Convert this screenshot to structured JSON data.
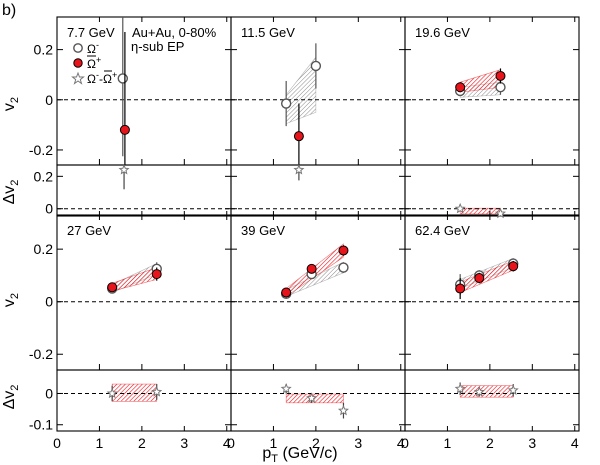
{
  "figure_label": "b)",
  "annotation": {
    "system": "Au+Au,  0-80%",
    "method": "η-sub EP"
  },
  "legend": [
    {
      "key": "omega_minus",
      "label": "Ω",
      "sup": "-",
      "marker": "open-circle"
    },
    {
      "key": "antiomega_plus",
      "label": "Ω",
      "sup": "+",
      "overline": true,
      "marker": "filled-circle"
    },
    {
      "key": "difference",
      "label": "Ω-Ω",
      "sup": "+",
      "sup_first": "-",
      "marker": "open-star"
    }
  ],
  "axes": {
    "xlabel_main": "p",
    "xlabel_sub": "T",
    "xlabel_rest": " (GeV/c)",
    "ylabel_v2_main": "v",
    "ylabel_v2_sub": "2",
    "ylabel_dv2_main": "Δv",
    "ylabel_dv2_sub": "2",
    "x_ticks": [
      "0",
      "1",
      "2",
      "3",
      "4"
    ],
    "v2_ticks_top": [
      "0.2",
      "0",
      "-0.2"
    ],
    "dv2_ticks_top": [
      "0.2",
      "0"
    ],
    "v2_ticks_bottom": [
      "0.2",
      "0",
      "-0.2"
    ],
    "dv2_ticks_bottom": [
      "0",
      "-0.1"
    ]
  },
  "colors": {
    "antiomega_fill": "#e8141b",
    "band_red": "#e8141b",
    "band_gray": "#8a8a8a"
  },
  "chart_data": {
    "type": "scatter",
    "title": "",
    "xlabel": "pT (GeV/c)",
    "xlim": [
      0,
      4.1
    ],
    "v2_ylim": [
      -0.26,
      0.33
    ],
    "dv2_ylim_top": [
      -0.045,
      0.27
    ],
    "dv2_ylim_bottom": [
      -0.12,
      0.075
    ],
    "panels": [
      {
        "energy": "7.7 GeV",
        "omega_minus": [
          {
            "x": 1.55,
            "y": 0.085,
            "err": 0.31
          }
        ],
        "antiomega_plus": [
          {
            "x": 1.6,
            "y": -0.12,
            "err": 0.39
          }
        ],
        "difference": [
          {
            "x": 1.58,
            "y": 0.24,
            "err": 0.12
          }
        ],
        "band_red": null,
        "band_gray": null,
        "dv2_band": null
      },
      {
        "energy": "11.5 GeV",
        "omega_minus": [
          {
            "x": 1.3,
            "y": -0.015,
            "err": 0.09
          },
          {
            "x": 2.0,
            "y": 0.135,
            "err": 0.09
          }
        ],
        "antiomega_plus": [
          {
            "x": 1.6,
            "y": -0.145,
            "err": 0.13
          }
        ],
        "difference": [
          {
            "x": 1.6,
            "y": 0.24,
            "err": 0.065
          }
        ],
        "band_red": null,
        "band_gray": {
          "x": [
            1.3,
            2.0
          ],
          "lo": [
            -0.095,
            -0.05
          ],
          "hi": [
            0.02,
            0.17
          ]
        },
        "dv2_band": null
      },
      {
        "energy": "19.6 GeV",
        "omega_minus": [
          {
            "x": 1.3,
            "y": 0.035,
            "err": 0.02
          },
          {
            "x": 2.25,
            "y": 0.05,
            "err": 0.03
          }
        ],
        "antiomega_plus": [
          {
            "x": 1.3,
            "y": 0.05,
            "err": 0.02
          },
          {
            "x": 2.25,
            "y": 0.095,
            "err": 0.03
          }
        ],
        "difference": [
          {
            "x": 1.3,
            "y": 0.0,
            "err": 0.008
          },
          {
            "x": 2.25,
            "y": -0.03,
            "err": 0.012
          }
        ],
        "band_red": {
          "x": [
            1.3,
            2.25
          ],
          "lo": [
            0.03,
            0.05
          ],
          "hi": [
            0.07,
            0.12
          ]
        },
        "band_gray": {
          "x": [
            1.3,
            2.25
          ],
          "lo": [
            0.01,
            0.02
          ],
          "hi": [
            0.05,
            0.07
          ]
        },
        "dv2_band": {
          "x": [
            1.3,
            2.25
          ],
          "lo": [
            -0.032,
            -0.032
          ],
          "hi": [
            0.003,
            0.003
          ]
        }
      },
      {
        "energy": "27 GeV",
        "omega_minus": [
          {
            "x": 1.3,
            "y": 0.05,
            "err": 0.015
          },
          {
            "x": 2.35,
            "y": 0.125,
            "err": 0.025
          }
        ],
        "antiomega_plus": [
          {
            "x": 1.3,
            "y": 0.055,
            "err": 0.015
          },
          {
            "x": 2.35,
            "y": 0.105,
            "err": 0.025
          }
        ],
        "difference": [
          {
            "x": 1.3,
            "y": 0.0,
            "err": 0.025
          },
          {
            "x": 2.35,
            "y": 0.005,
            "err": 0.025
          }
        ],
        "band_red": {
          "x": [
            1.3,
            2.35
          ],
          "lo": [
            0.04,
            0.085
          ],
          "hi": [
            0.07,
            0.13
          ]
        },
        "band_gray": {
          "x": [
            1.3,
            2.35
          ],
          "lo": [
            0.035,
            0.105
          ],
          "hi": [
            0.065,
            0.145
          ]
        },
        "dv2_band": {
          "x": [
            1.3,
            2.35
          ],
          "lo": [
            -0.025,
            -0.025
          ],
          "hi": [
            0.03,
            0.03
          ]
        }
      },
      {
        "energy": "39 GeV",
        "omega_minus": [
          {
            "x": 1.3,
            "y": 0.03,
            "err": 0.015
          },
          {
            "x": 1.9,
            "y": 0.105,
            "err": 0.015
          },
          {
            "x": 2.65,
            "y": 0.13,
            "err": 0.02
          }
        ],
        "antiomega_plus": [
          {
            "x": 1.3,
            "y": 0.035,
            "err": 0.015
          },
          {
            "x": 1.9,
            "y": 0.125,
            "err": 0.015
          },
          {
            "x": 2.65,
            "y": 0.195,
            "err": 0.02
          }
        ],
        "difference": [
          {
            "x": 1.3,
            "y": 0.015,
            "err": 0.015
          },
          {
            "x": 1.9,
            "y": -0.015,
            "err": 0.015
          },
          {
            "x": 2.65,
            "y": -0.055,
            "err": 0.025
          }
        ],
        "band_red": {
          "x": [
            1.3,
            2.65
          ],
          "lo": [
            0.02,
            0.17
          ],
          "hi": [
            0.05,
            0.22
          ]
        },
        "band_gray": {
          "x": [
            1.3,
            2.65
          ],
          "lo": [
            0.02,
            0.11
          ],
          "hi": [
            0.045,
            0.15
          ]
        },
        "dv2_band": {
          "x": [
            1.3,
            2.65
          ],
          "lo": [
            -0.03,
            -0.03
          ],
          "hi": [
            -0.002,
            -0.002
          ]
        }
      },
      {
        "energy": "62.4 GeV",
        "omega_minus": [
          {
            "x": 1.3,
            "y": 0.065,
            "err": 0.04
          },
          {
            "x": 1.75,
            "y": 0.1,
            "err": 0.02
          },
          {
            "x": 2.55,
            "y": 0.145,
            "err": 0.02
          }
        ],
        "antiomega_plus": [
          {
            "x": 1.3,
            "y": 0.05,
            "err": 0.04
          },
          {
            "x": 1.75,
            "y": 0.09,
            "err": 0.02
          },
          {
            "x": 2.55,
            "y": 0.135,
            "err": 0.02
          }
        ],
        "difference": [
          {
            "x": 1.3,
            "y": 0.015,
            "err": 0.02
          },
          {
            "x": 1.75,
            "y": 0.005,
            "err": 0.015
          },
          {
            "x": 2.55,
            "y": 0.01,
            "err": 0.02
          }
        ],
        "band_red": {
          "x": [
            1.3,
            2.55
          ],
          "lo": [
            0.035,
            0.12
          ],
          "hi": [
            0.075,
            0.155
          ]
        },
        "band_gray": {
          "x": [
            1.3,
            2.55
          ],
          "lo": [
            0.05,
            0.13
          ],
          "hi": [
            0.085,
            0.165
          ]
        },
        "dv2_band": {
          "x": [
            1.3,
            2.55
          ],
          "lo": [
            -0.012,
            -0.012
          ],
          "hi": [
            0.025,
            0.025
          ]
        }
      }
    ]
  }
}
